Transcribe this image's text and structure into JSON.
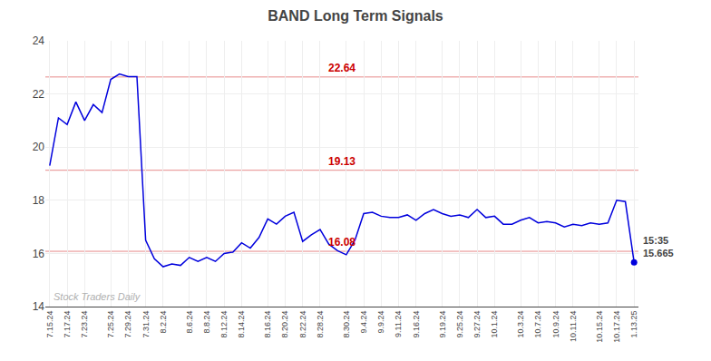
{
  "chart_data": {
    "type": "line",
    "title": "BAND Long Term Signals",
    "categories": [
      "7.15.24",
      null,
      "7.17.24",
      null,
      "7.23.24",
      null,
      null,
      "7.25.24",
      null,
      "7.29.24",
      null,
      "7.31.24",
      null,
      "8.2.24",
      null,
      null,
      "8.6.24",
      null,
      "8.8.24",
      null,
      "8.12.24",
      null,
      "8.14.24",
      null,
      null,
      "8.16.24",
      null,
      "8.20.24",
      null,
      "8.22.24",
      null,
      "8.28.24",
      null,
      null,
      "8.30.24",
      null,
      "9.4.24",
      null,
      "9.9.24",
      null,
      "9.11.24",
      null,
      "9.16.24",
      null,
      null,
      "9.19.24",
      null,
      "9.25.24",
      null,
      "9.27.24",
      null,
      "10.1.24",
      null,
      null,
      "10.3.24",
      null,
      "10.7.24",
      null,
      "10.9.24",
      null,
      "10.11.24",
      null,
      null,
      "10.15.24",
      null,
      "10.17.24",
      null,
      "1.13.25"
    ],
    "values": [
      19.3,
      21.1,
      20.85,
      21.7,
      21.0,
      21.6,
      21.3,
      22.55,
      22.75,
      22.65,
      22.65,
      16.5,
      15.8,
      15.5,
      15.6,
      15.55,
      15.85,
      15.7,
      15.85,
      15.7,
      16.0,
      16.05,
      16.4,
      16.2,
      16.6,
      17.3,
      17.1,
      17.4,
      17.55,
      16.45,
      16.7,
      16.9,
      16.35,
      16.1,
      15.95,
      16.5,
      17.5,
      17.55,
      17.4,
      17.35,
      17.35,
      17.45,
      17.25,
      17.5,
      17.65,
      17.5,
      17.4,
      17.45,
      17.35,
      17.65,
      17.35,
      17.4,
      17.1,
      17.1,
      17.25,
      17.35,
      17.15,
      17.2,
      17.15,
      17.0,
      17.1,
      17.05,
      17.15,
      17.1,
      17.15,
      18.0,
      17.95,
      15.665
    ],
    "color": "#0000dd",
    "hlines": [
      {
        "value": 22.64,
        "label": "22.64",
        "color": "#cc0000"
      },
      {
        "value": 19.13,
        "label": "19.13",
        "color": "#cc0000"
      },
      {
        "value": 16.08,
        "label": "16.08",
        "color": "#cc0000"
      }
    ],
    "annotations": [
      {
        "text": "Stock Traders Daily"
      },
      {
        "text": "15:35",
        "x": 67,
        "y": 15.665
      },
      {
        "text": "15.665",
        "x": 67,
        "y": 15.665
      }
    ],
    "ylim": [
      14,
      24
    ],
    "yticks": [
      14,
      16,
      18,
      20,
      22,
      24
    ],
    "grid": true
  }
}
